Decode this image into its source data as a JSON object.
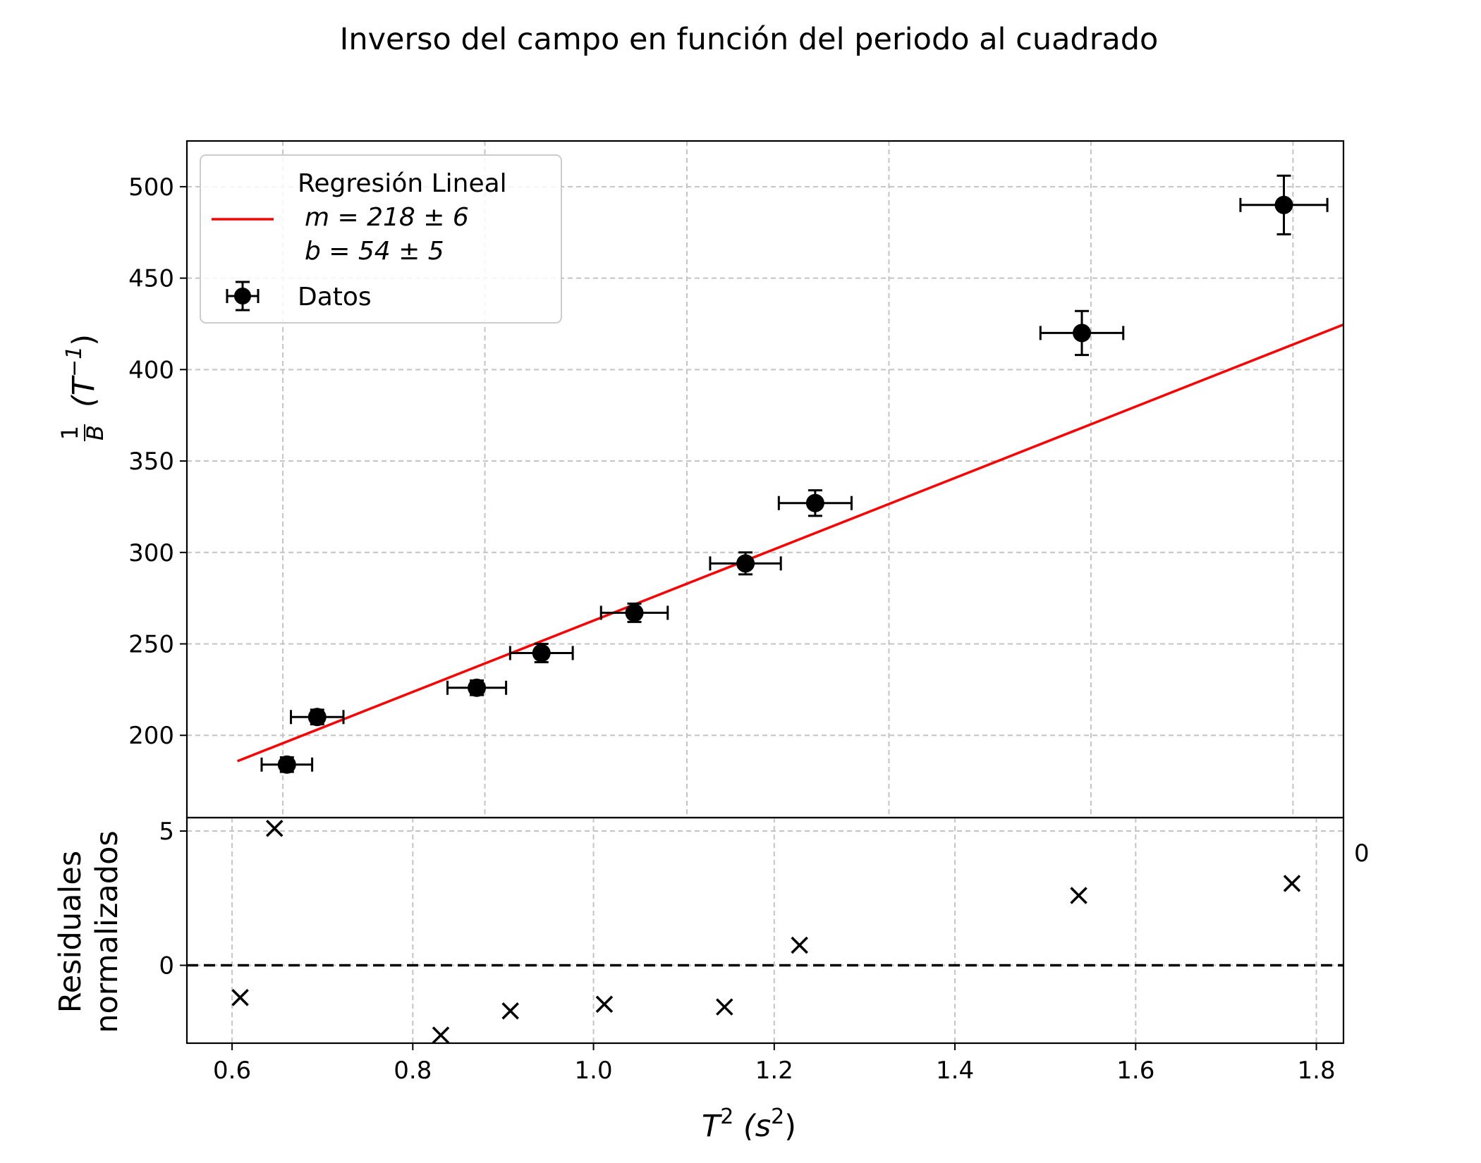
{
  "chart_data": [
    {
      "type": "scatter",
      "title": "Inverso del campo en función del periodo al cuadrado",
      "ylabel_parts": {
        "num": "1",
        "den": "B",
        "unit_base": "(T",
        "unit_exp": "−1",
        "unit_close": ")"
      },
      "ylim": [
        155,
        525
      ],
      "xlim": [
        0.555,
        1.7
      ],
      "yticks": [
        200,
        250,
        300,
        350,
        400,
        450,
        500
      ],
      "grid": true,
      "legend_position": "top-left",
      "legend": {
        "fit_lines": [
          "Regresión Lineal",
          "m = 218 ± 6",
          "b = 54 ± 5"
        ],
        "data_label": "Datos"
      },
      "fit": {
        "slope": 218,
        "intercept": 54,
        "x_start": 0.605,
        "x_end": 1.7,
        "color": "#ff0000"
      },
      "series": [
        {
          "name": "Datos",
          "color": "#000000",
          "points": [
            {
              "x": 0.654,
              "y": 184,
              "xerr": 0.025,
              "yerr": 4
            },
            {
              "x": 0.684,
              "y": 210,
              "xerr": 0.026,
              "yerr": 4
            },
            {
              "x": 0.842,
              "y": 226,
              "xerr": 0.029,
              "yerr": 4
            },
            {
              "x": 0.906,
              "y": 245,
              "xerr": 0.031,
              "yerr": 5
            },
            {
              "x": 0.998,
              "y": 267,
              "xerr": 0.033,
              "yerr": 5
            },
            {
              "x": 1.108,
              "y": 294,
              "xerr": 0.035,
              "yerr": 6
            },
            {
              "x": 1.177,
              "y": 327,
              "xerr": 0.036,
              "yerr": 7
            },
            {
              "x": 1.441,
              "y": 420,
              "xerr": 0.041,
              "yerr": 12
            },
            {
              "x": 1.641,
              "y": 490,
              "xerr": 0.043,
              "yerr": 16
            }
          ]
        }
      ]
    },
    {
      "type": "scatter",
      "ylabel_lines": [
        "Residuales",
        "normalizados"
      ],
      "xlabel_parts": {
        "base": "T",
        "exp": "2",
        "unit_open": "(s",
        "unit_exp": "2",
        "unit_close": ")"
      },
      "xlim": [
        0.55,
        1.83
      ],
      "ylim": [
        -2.9,
        5.5
      ],
      "xticks": [
        0.6,
        0.8,
        1.0,
        1.2,
        1.4,
        1.6,
        1.8
      ],
      "xtick_labels": [
        "0.6",
        "0.8",
        "1.0",
        "1.2",
        "1.4",
        "1.6",
        "1.8"
      ],
      "yticks": [
        0,
        5
      ],
      "reference_line": 0,
      "grid": true,
      "stray_label": "0",
      "series": [
        {
          "name": "residuales",
          "marker": "x",
          "color": "#000000",
          "points": [
            {
              "x": 0.609,
              "y": -1.2
            },
            {
              "x": 0.647,
              "y": 5.1
            },
            {
              "x": 0.831,
              "y": -2.6
            },
            {
              "x": 0.908,
              "y": -1.7
            },
            {
              "x": 1.012,
              "y": -1.45
            },
            {
              "x": 1.145,
              "y": -1.55
            },
            {
              "x": 1.228,
              "y": 0.75
            },
            {
              "x": 1.537,
              "y": 2.6
            },
            {
              "x": 1.773,
              "y": 3.05
            }
          ]
        }
      ]
    }
  ]
}
